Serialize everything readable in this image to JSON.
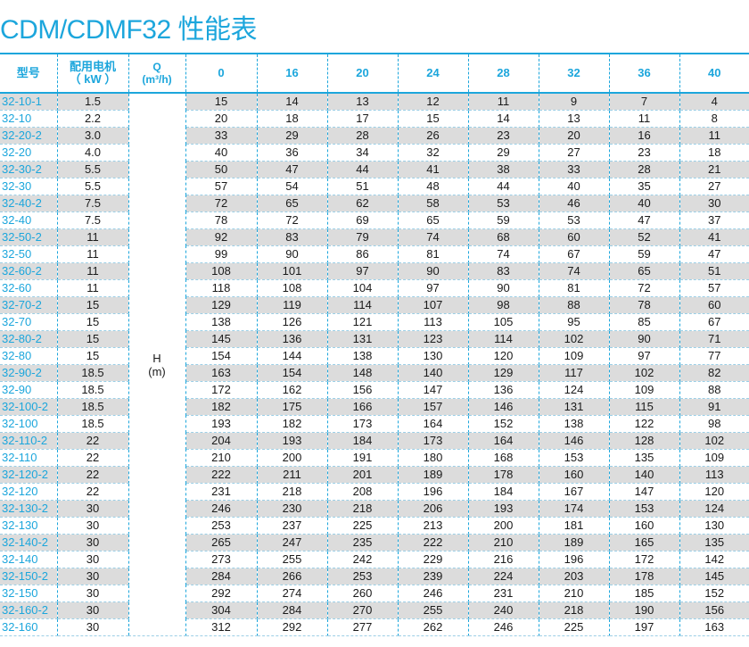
{
  "title": "CDM/CDMF32 性能表",
  "header": {
    "model": "型号",
    "motor_line1": "配用电机",
    "motor_line2": "（ kW ）",
    "q_line1": "Q",
    "q_line2": "(m³/h)",
    "flows": [
      "0",
      "16",
      "20",
      "24",
      "28",
      "32",
      "36",
      "40"
    ]
  },
  "h_label": {
    "line1": "H",
    "line2": "(m)"
  },
  "rows": [
    {
      "model": "32-10-1",
      "kw": "1.5",
      "heads": [
        "15",
        "14",
        "13",
        "12",
        "11",
        "9",
        "7",
        "4"
      ]
    },
    {
      "model": "32-10",
      "kw": "2.2",
      "heads": [
        "20",
        "18",
        "17",
        "15",
        "14",
        "13",
        "11",
        "8"
      ]
    },
    {
      "model": "32-20-2",
      "kw": "3.0",
      "heads": [
        "33",
        "29",
        "28",
        "26",
        "23",
        "20",
        "16",
        "11"
      ]
    },
    {
      "model": "32-20",
      "kw": "4.0",
      "heads": [
        "40",
        "36",
        "34",
        "32",
        "29",
        "27",
        "23",
        "18"
      ]
    },
    {
      "model": "32-30-2",
      "kw": "5.5",
      "heads": [
        "50",
        "47",
        "44",
        "41",
        "38",
        "33",
        "28",
        "21"
      ]
    },
    {
      "model": "32-30",
      "kw": "5.5",
      "heads": [
        "57",
        "54",
        "51",
        "48",
        "44",
        "40",
        "35",
        "27"
      ]
    },
    {
      "model": "32-40-2",
      "kw": "7.5",
      "heads": [
        "72",
        "65",
        "62",
        "58",
        "53",
        "46",
        "40",
        "30"
      ]
    },
    {
      "model": "32-40",
      "kw": "7.5",
      "heads": [
        "78",
        "72",
        "69",
        "65",
        "59",
        "53",
        "47",
        "37"
      ]
    },
    {
      "model": "32-50-2",
      "kw": "11",
      "heads": [
        "92",
        "83",
        "79",
        "74",
        "68",
        "60",
        "52",
        "41"
      ]
    },
    {
      "model": "32-50",
      "kw": "11",
      "heads": [
        "99",
        "90",
        "86",
        "81",
        "74",
        "67",
        "59",
        "47"
      ]
    },
    {
      "model": "32-60-2",
      "kw": "11",
      "heads": [
        "108",
        "101",
        "97",
        "90",
        "83",
        "74",
        "65",
        "51"
      ]
    },
    {
      "model": "32-60",
      "kw": "11",
      "heads": [
        "118",
        "108",
        "104",
        "97",
        "90",
        "81",
        "72",
        "57"
      ]
    },
    {
      "model": "32-70-2",
      "kw": "15",
      "heads": [
        "129",
        "119",
        "114",
        "107",
        "98",
        "88",
        "78",
        "60"
      ]
    },
    {
      "model": "32-70",
      "kw": "15",
      "heads": [
        "138",
        "126",
        "121",
        "113",
        "105",
        "95",
        "85",
        "67"
      ]
    },
    {
      "model": "32-80-2",
      "kw": "15",
      "heads": [
        "145",
        "136",
        "131",
        "123",
        "114",
        "102",
        "90",
        "71"
      ]
    },
    {
      "model": "32-80",
      "kw": "15",
      "heads": [
        "154",
        "144",
        "138",
        "130",
        "120",
        "109",
        "97",
        "77"
      ]
    },
    {
      "model": "32-90-2",
      "kw": "18.5",
      "heads": [
        "163",
        "154",
        "148",
        "140",
        "129",
        "117",
        "102",
        "82"
      ]
    },
    {
      "model": "32-90",
      "kw": "18.5",
      "heads": [
        "172",
        "162",
        "156",
        "147",
        "136",
        "124",
        "109",
        "88"
      ]
    },
    {
      "model": "32-100-2",
      "kw": "18.5",
      "heads": [
        "182",
        "175",
        "166",
        "157",
        "146",
        "131",
        "115",
        "91"
      ]
    },
    {
      "model": "32-100",
      "kw": "18.5",
      "heads": [
        "193",
        "182",
        "173",
        "164",
        "152",
        "138",
        "122",
        "98"
      ]
    },
    {
      "model": "32-110-2",
      "kw": "22",
      "heads": [
        "204",
        "193",
        "184",
        "173",
        "164",
        "146",
        "128",
        "102"
      ]
    },
    {
      "model": "32-110",
      "kw": "22",
      "heads": [
        "210",
        "200",
        "191",
        "180",
        "168",
        "153",
        "135",
        "109"
      ]
    },
    {
      "model": "32-120-2",
      "kw": "22",
      "heads": [
        "222",
        "211",
        "201",
        "189",
        "178",
        "160",
        "140",
        "113"
      ]
    },
    {
      "model": "32-120",
      "kw": "22",
      "heads": [
        "231",
        "218",
        "208",
        "196",
        "184",
        "167",
        "147",
        "120"
      ]
    },
    {
      "model": "32-130-2",
      "kw": "30",
      "heads": [
        "246",
        "230",
        "218",
        "206",
        "193",
        "174",
        "153",
        "124"
      ]
    },
    {
      "model": "32-130",
      "kw": "30",
      "heads": [
        "253",
        "237",
        "225",
        "213",
        "200",
        "181",
        "160",
        "130"
      ]
    },
    {
      "model": "32-140-2",
      "kw": "30",
      "heads": [
        "265",
        "247",
        "235",
        "222",
        "210",
        "189",
        "165",
        "135"
      ]
    },
    {
      "model": "32-140",
      "kw": "30",
      "heads": [
        "273",
        "255",
        "242",
        "229",
        "216",
        "196",
        "172",
        "142"
      ]
    },
    {
      "model": "32-150-2",
      "kw": "30",
      "heads": [
        "284",
        "266",
        "253",
        "239",
        "224",
        "203",
        "178",
        "145"
      ]
    },
    {
      "model": "32-150",
      "kw": "30",
      "heads": [
        "292",
        "274",
        "260",
        "246",
        "231",
        "210",
        "185",
        "152"
      ]
    },
    {
      "model": "32-160-2",
      "kw": "30",
      "heads": [
        "304",
        "284",
        "270",
        "255",
        "240",
        "218",
        "190",
        "156"
      ]
    },
    {
      "model": "32-160",
      "kw": "30",
      "heads": [
        "312",
        "292",
        "277",
        "262",
        "246",
        "225",
        "197",
        "163"
      ]
    }
  ],
  "colors": {
    "accent": "#1ca6dc",
    "row_shade": "#dcdcdc",
    "text": "#1a1a1a"
  }
}
